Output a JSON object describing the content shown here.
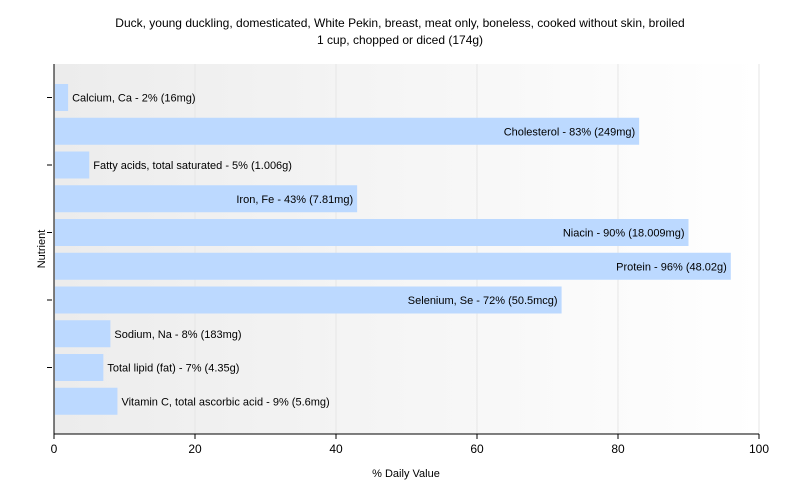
{
  "colors": {
    "bar": "#bcd9ff",
    "axis": "#000000",
    "grid": "#e6e6e6",
    "plot_bg_left": "#ececec",
    "plot_bg_right": "#ffffff"
  },
  "chart_data": {
    "type": "bar",
    "orientation": "horizontal",
    "title": "Duck, young duckling, domesticated, White Pekin, breast, meat only, boneless, cooked without skin, broiled",
    "subtitle": "1 cup, chopped or diced (174g)",
    "xlabel": "% Daily Value",
    "ylabel": "Nutrient",
    "xlim": [
      0,
      100
    ],
    "xticks": [
      0,
      20,
      40,
      60,
      80,
      100
    ],
    "grid": true,
    "categories": [
      "Calcium, Ca",
      "Cholesterol",
      "Fatty acids, total saturated",
      "Iron, Fe",
      "Niacin",
      "Protein",
      "Selenium, Se",
      "Sodium, Na",
      "Total lipid (fat)",
      "Vitamin C, total ascorbic acid"
    ],
    "values": [
      2,
      83,
      5,
      43,
      90,
      96,
      72,
      8,
      7,
      9
    ],
    "labels": [
      "Calcium, Ca - 2% (16mg)",
      "Cholesterol - 83% (249mg)",
      "Fatty acids, total saturated - 5% (1.006g)",
      "Iron, Fe - 43% (7.81mg)",
      "Niacin - 90% (18.009mg)",
      "Protein - 96% (48.02g)",
      "Selenium, Se - 72% (50.5mcg)",
      "Sodium, Na - 8% (183mg)",
      "Total lipid (fat) - 7% (4.35g)",
      "Vitamin C, total ascorbic acid - 9% (5.6mg)"
    ]
  }
}
